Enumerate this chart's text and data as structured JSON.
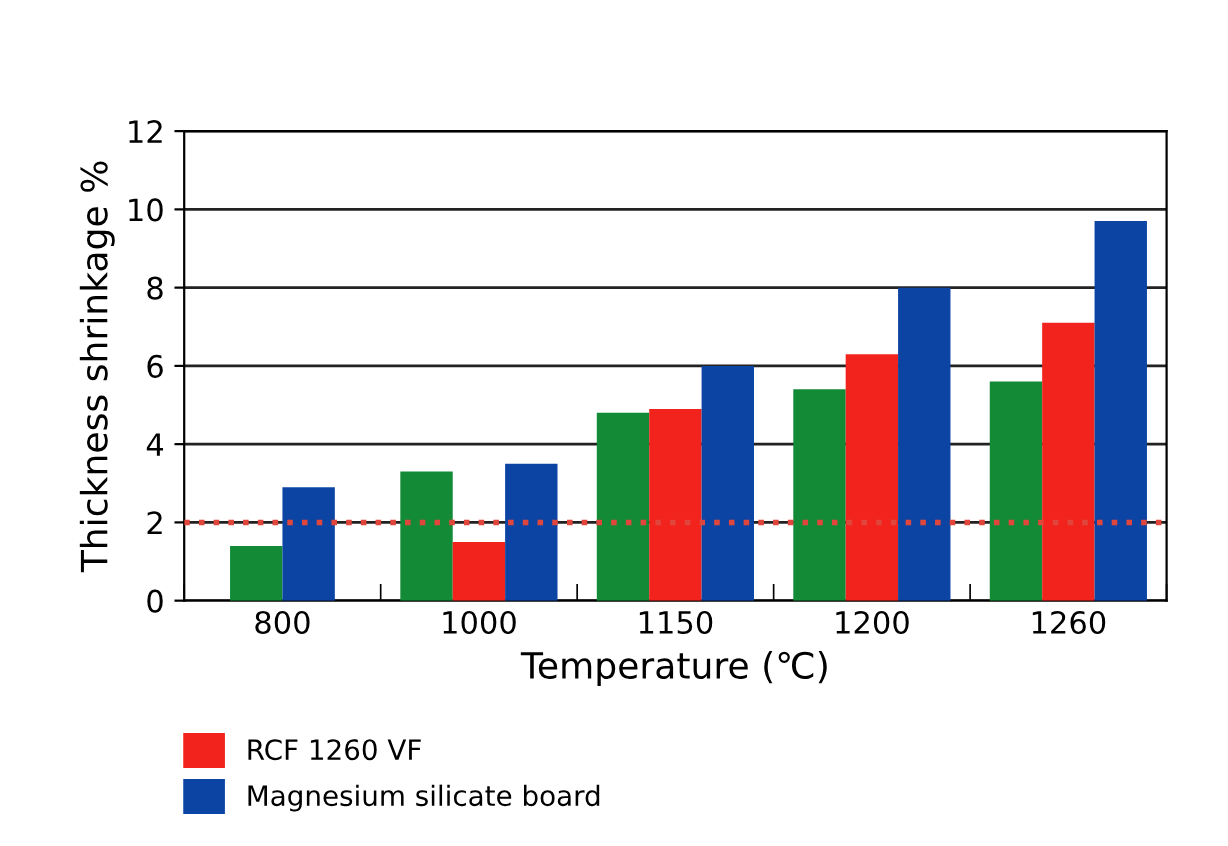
{
  "chart_data": {
    "type": "bar",
    "xlabel": "Temperature (℃)",
    "ylabel": "Thickness shrinkage %",
    "categories": [
      "800",
      "1000",
      "1150",
      "1200",
      "1260"
    ],
    "series": [
      {
        "color": "#138a35",
        "values": [
          1.4,
          3.3,
          4.8,
          5.4,
          5.6
        ]
      },
      {
        "name": "RCF 1260 VF",
        "color": "#f2231d",
        "values": [
          null,
          1.5,
          4.9,
          6.3,
          7.1
        ]
      },
      {
        "name": "Magnesium silicate board",
        "color": "#0c44a4",
        "values": [
          2.9,
          3.5,
          6.0,
          8.0,
          9.7
        ]
      }
    ],
    "ylim": [
      0,
      12
    ],
    "yticks": [
      0,
      2,
      4,
      6,
      8,
      10,
      12
    ],
    "grid": "y",
    "legend": "bottom",
    "ref_lines": [
      {
        "axis": "y",
        "value": 2,
        "color": "#e0463c",
        "line_style": "dotted"
      }
    ]
  }
}
